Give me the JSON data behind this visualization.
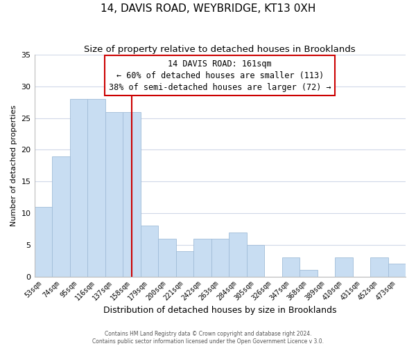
{
  "title": "14, DAVIS ROAD, WEYBRIDGE, KT13 0XH",
  "subtitle": "Size of property relative to detached houses in Brooklands",
  "xlabel": "Distribution of detached houses by size in Brooklands",
  "ylabel": "Number of detached properties",
  "footer_line1": "Contains HM Land Registry data © Crown copyright and database right 2024.",
  "footer_line2": "Contains public sector information licensed under the Open Government Licence v 3.0.",
  "bin_labels": [
    "53sqm",
    "74sqm",
    "95sqm",
    "116sqm",
    "137sqm",
    "158sqm",
    "179sqm",
    "200sqm",
    "221sqm",
    "242sqm",
    "263sqm",
    "284sqm",
    "305sqm",
    "326sqm",
    "347sqm",
    "368sqm",
    "389sqm",
    "410sqm",
    "431sqm",
    "452sqm",
    "473sqm"
  ],
  "bar_values": [
    11,
    19,
    28,
    28,
    26,
    26,
    8,
    6,
    4,
    6,
    6,
    7,
    5,
    0,
    3,
    1,
    0,
    3,
    0,
    3,
    2
  ],
  "bar_color": "#c8ddf2",
  "bar_edge_color": "#a0bcd8",
  "vline_x": 5.5,
  "vline_color": "#cc0000",
  "annotation_line1": "14 DAVIS ROAD: 161sqm",
  "annotation_line2": "← 60% of detached houses are smaller (113)",
  "annotation_line3": "38% of semi-detached houses are larger (72) →",
  "ylim": [
    0,
    35
  ],
  "yticks": [
    0,
    5,
    10,
    15,
    20,
    25,
    30,
    35
  ],
  "bg_color": "#ffffff",
  "grid_color": "#d0d8e8",
  "annotation_fontsize": 8.5,
  "title_fontsize": 11,
  "subtitle_fontsize": 9.5,
  "ylabel_fontsize": 8,
  "xlabel_fontsize": 9
}
